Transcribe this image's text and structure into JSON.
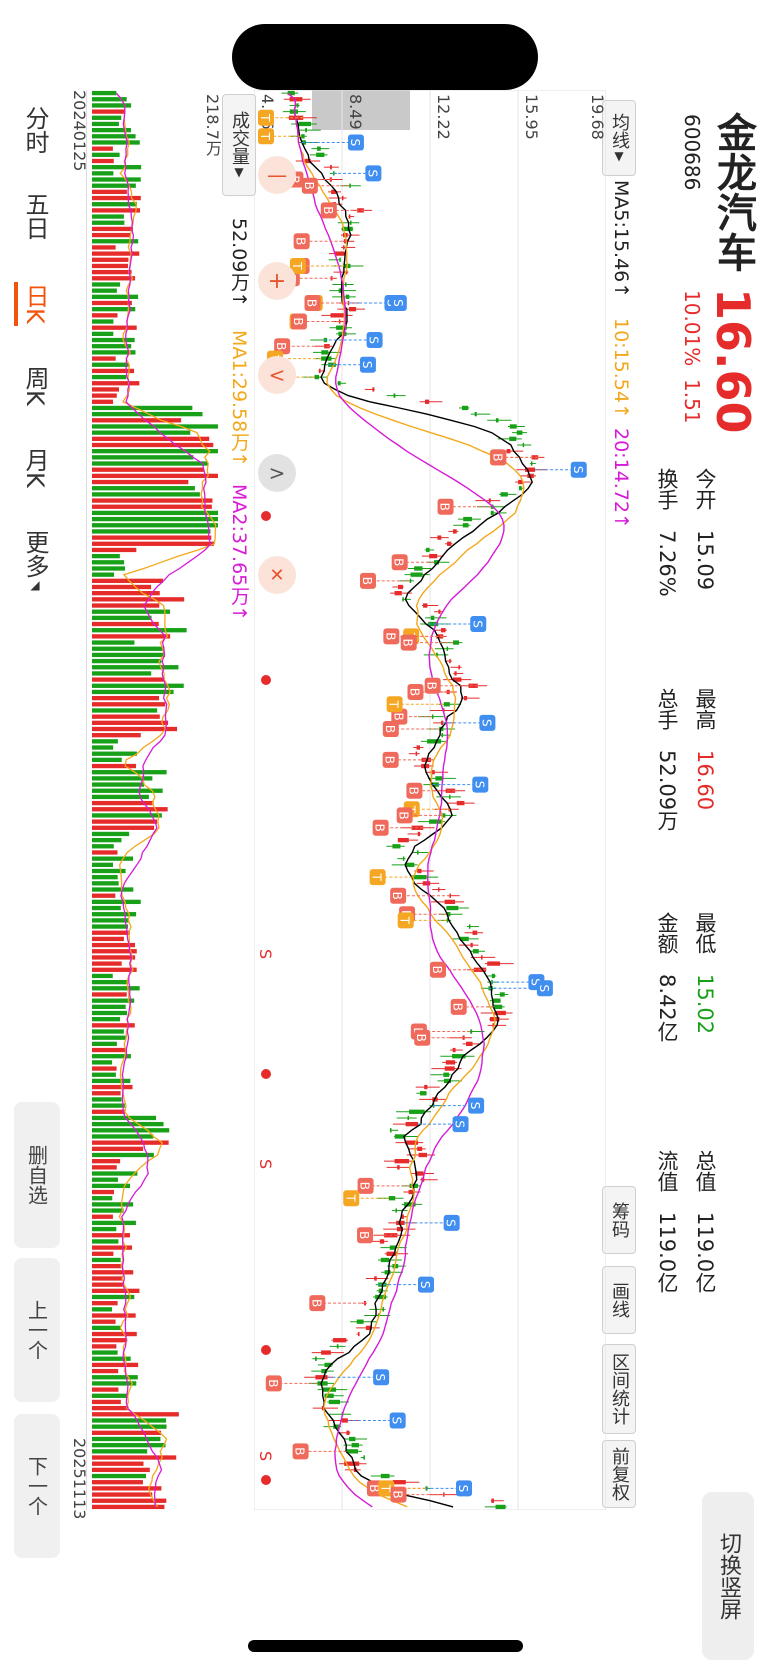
{
  "stock": {
    "name": "金龙汽车",
    "code": "600686",
    "price": "16.60",
    "change_pct": "10.01%",
    "change_amt": "1.51"
  },
  "stats": {
    "open_label": "今开",
    "open_value": "15.09",
    "turnover_label": "换手",
    "turnover_value": "7.26%",
    "high_label": "最高",
    "high_value": "16.60",
    "volume_label": "总手",
    "volume_value": "52.09万",
    "low_label": "最低",
    "low_value": "15.02",
    "amount_label": "金额",
    "amount_value": "8.42亿",
    "total_cap_label": "总值",
    "total_cap_value": "119.0亿",
    "float_cap_label": "流值",
    "float_cap_value": "119.0亿"
  },
  "toolbar": {
    "switch_label": "切换竖屏",
    "chips_label": "筹码",
    "draw_label": "画线",
    "interval_label": "区间统计",
    "adjust_label": "前复权"
  },
  "ma_bar": {
    "selector_label": "均线",
    "ma5": "MA5:15.46↑",
    "ma10": "10:15.54↑",
    "ma20": "20:14.72↑"
  },
  "price_axis": [
    "19.68",
    "15.95",
    "12.22",
    "8.49",
    "4.76"
  ],
  "volume_bar": {
    "selector_label": "成交量",
    "value": "52.09万↑",
    "ma1": "MA1:29.58万↑",
    "ma2": "MA2:37.65万↑",
    "max_label": "218.7万"
  },
  "dates": {
    "start": "20240125",
    "end": "20251113"
  },
  "period_tabs": [
    "分时",
    "五日",
    "日K",
    "周K",
    "月K",
    "更多"
  ],
  "active_period": "日K",
  "side_buttons": {
    "remove_label": "删自选",
    "prev_label": "上一个",
    "next_label": "下一个"
  },
  "markers": {
    "buy": "B",
    "sell": "S",
    "t": "T"
  },
  "signal_letter": "S",
  "controls": {
    "minus": "—",
    "plus": "+",
    "back": "<",
    "forward": ">"
  },
  "colors": {
    "up": "#e62b2b",
    "down": "#18a118",
    "ma5": "#000000",
    "ma10": "#f3a81b",
    "ma20": "#d71ad7",
    "accent": "#f2550a"
  }
}
